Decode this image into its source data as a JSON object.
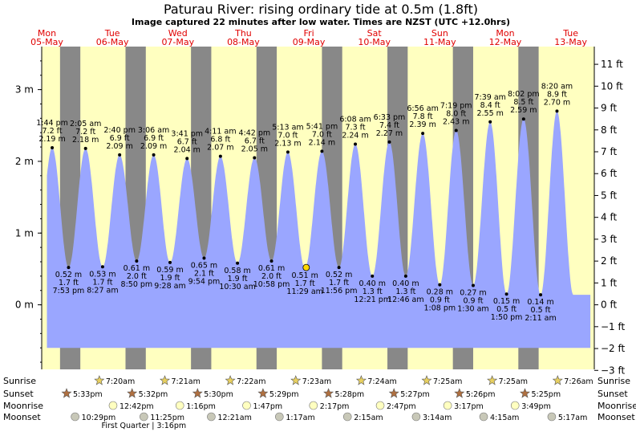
{
  "page": {
    "title": "Paturau River: rising  ordinary tide at 0.5m (1.8ft)",
    "subtitle": "Image captured 22 minutes after low water. Times are NZST (UTC +12.0hrs)"
  },
  "colors": {
    "night": "#888888",
    "day": "#ffffc0",
    "tide": "#9aa6ff",
    "day_label": "#e00000"
  },
  "chart_data": {
    "type": "area",
    "title": "Paturau River: rising  ordinary tide at 0.5m (1.8ft)",
    "days": [
      {
        "name": "Mon",
        "date": "05-May"
      },
      {
        "name": "Tue",
        "date": "06-May"
      },
      {
        "name": "Wed",
        "date": "07-May"
      },
      {
        "name": "Thu",
        "date": "08-May"
      },
      {
        "name": "Fri",
        "date": "09-May"
      },
      {
        "name": "Sat",
        "date": "10-May"
      },
      {
        "name": "Sun",
        "date": "11-May"
      },
      {
        "name": "Mon",
        "date": "12-May"
      },
      {
        "name": "Tue",
        "date": "13-May"
      }
    ],
    "x_range_days": [
      -0.08,
      8.36
    ],
    "night_periods": [
      [
        0.2,
        0.31
      ],
      [
        1.2,
        1.31
      ],
      [
        2.2,
        2.31
      ],
      [
        3.2,
        3.31
      ],
      [
        4.2,
        4.31
      ],
      [
        5.2,
        5.31
      ],
      [
        6.2,
        6.31
      ],
      [
        7.2,
        7.31
      ]
    ],
    "data_range_days": [
      0.0,
      8.3
    ],
    "y_left": {
      "unit": "m",
      "range": [
        -0.9,
        3.6
      ],
      "ticks": [
        0,
        1,
        2,
        3
      ],
      "labels": [
        "0 m",
        "1 m",
        "2 m",
        "3 m"
      ]
    },
    "y_right": {
      "unit": "ft",
      "ticks": [
        -3,
        -2,
        -1,
        0,
        1,
        2,
        3,
        4,
        5,
        6,
        7,
        8,
        9,
        10,
        11
      ],
      "labels": [
        "−3 ft",
        "−2 ft",
        "−1 ft",
        "0 ft",
        "1 ft",
        "2 ft",
        "3 ft",
        "4 ft",
        "5 ft",
        "6 ft",
        "7 ft",
        "8 ft",
        "9 ft",
        "10 ft",
        "11 ft"
      ]
    },
    "tides": [
      {
        "type": "high",
        "day": 0.08,
        "m": 2.19,
        "time": "1:44 pm",
        "ft": "7.2 ft",
        "m_label": "2.19 m"
      },
      {
        "type": "low",
        "day": 0.33,
        "m": 0.52,
        "time": "7:53 pm",
        "ft": "1.7 ft",
        "m_label": "0.52 m"
      },
      {
        "type": "high",
        "day": 0.59,
        "m": 2.18,
        "time": "2:05 am",
        "ft": "7.2 ft",
        "m_label": "2.18 m"
      },
      {
        "type": "low",
        "day": 0.85,
        "m": 0.53,
        "time": "8:27 am",
        "ft": "1.7 ft",
        "m_label": "0.53 m"
      },
      {
        "type": "high",
        "day": 1.11,
        "m": 2.09,
        "time": "2:40 pm",
        "ft": "6.9 ft",
        "m_label": "2.09 m"
      },
      {
        "type": "low",
        "day": 1.37,
        "m": 0.61,
        "time": "8:50 pm",
        "ft": "2.0 ft",
        "m_label": "0.61 m"
      },
      {
        "type": "high",
        "day": 1.63,
        "m": 2.09,
        "time": "3:06 am",
        "ft": "6.9 ft",
        "m_label": "2.09 m"
      },
      {
        "type": "low",
        "day": 1.88,
        "m": 0.59,
        "time": "9:28 am",
        "ft": "1.9 ft",
        "m_label": "0.59 m"
      },
      {
        "type": "high",
        "day": 2.14,
        "m": 2.04,
        "time": "3:41 pm",
        "ft": "6.7 ft",
        "m_label": "2.04 m"
      },
      {
        "type": "low",
        "day": 2.4,
        "m": 0.65,
        "time": "9:54 pm",
        "ft": "2.1 ft",
        "m_label": "0.65 m"
      },
      {
        "type": "high",
        "day": 2.65,
        "m": 2.07,
        "time": "4:11 am",
        "ft": "6.8 ft",
        "m_label": "2.07 m"
      },
      {
        "type": "low",
        "day": 2.91,
        "m": 0.58,
        "time": "10:30 am",
        "ft": "1.9 ft",
        "m_label": "0.58 m"
      },
      {
        "type": "high",
        "day": 3.17,
        "m": 2.05,
        "time": "4:42 pm",
        "ft": "6.7 ft",
        "m_label": "2.05 m"
      },
      {
        "type": "low",
        "day": 3.43,
        "m": 0.61,
        "time": "10:58 pm",
        "ft": "2.0 ft",
        "m_label": "0.61 m"
      },
      {
        "type": "high",
        "day": 3.68,
        "m": 2.13,
        "time": "5:13 am",
        "ft": "7.0 ft",
        "m_label": "2.13 m"
      },
      {
        "type": "low",
        "day": 3.94,
        "m": 0.51,
        "time": "11:29 am",
        "ft": "1.7 ft",
        "m_label": "0.51 m"
      },
      {
        "type": "high",
        "day": 4.2,
        "m": 2.14,
        "time": "5:41 pm",
        "ft": "7.0 ft",
        "m_label": "2.14 m"
      },
      {
        "type": "low",
        "day": 4.46,
        "m": 0.52,
        "time": "11:56 pm",
        "ft": "1.7 ft",
        "m_label": "0.52 m"
      },
      {
        "type": "high",
        "day": 4.71,
        "m": 2.24,
        "time": "6:08 am",
        "ft": "7.3 ft",
        "m_label": "2.24 m"
      },
      {
        "type": "low",
        "day": 4.97,
        "m": 0.4,
        "time": "12:21 pm",
        "ft": "1.3 ft",
        "m_label": "0.40 m"
      },
      {
        "type": "high",
        "day": 5.23,
        "m": 2.27,
        "time": "6:33 pm",
        "ft": "7.4 ft",
        "m_label": "2.27 m"
      },
      {
        "type": "low",
        "day": 5.48,
        "m": 0.4,
        "time": "12:46 am",
        "ft": "1.3 ft",
        "m_label": "0.40 m"
      },
      {
        "type": "high",
        "day": 5.74,
        "m": 2.39,
        "time": "6:56 am",
        "ft": "7.8 ft",
        "m_label": "2.39 m"
      },
      {
        "type": "low",
        "day": 6.0,
        "m": 0.28,
        "time": "1:08 pm",
        "ft": "0.9 ft",
        "m_label": "0.28 m"
      },
      {
        "type": "high",
        "day": 6.25,
        "m": 2.43,
        "time": "7:19 pm",
        "ft": "8.0 ft",
        "m_label": "2.43 m"
      },
      {
        "type": "low",
        "day": 6.51,
        "m": 0.27,
        "time": "1:30 am",
        "ft": "0.9 ft",
        "m_label": "0.27 m"
      },
      {
        "type": "high",
        "day": 6.77,
        "m": 2.55,
        "time": "7:39 am",
        "ft": "8.4 ft",
        "m_label": "2.55 m"
      },
      {
        "type": "low",
        "day": 7.02,
        "m": 0.15,
        "time": "1:50 pm",
        "ft": "0.5 ft",
        "m_label": "0.15 m"
      },
      {
        "type": "high",
        "day": 7.28,
        "m": 2.59,
        "time": "8:02 pm",
        "ft": "8.5 ft",
        "m_label": "2.59 m"
      },
      {
        "type": "low",
        "day": 7.54,
        "m": 0.14,
        "time": "2:11 am",
        "ft": "0.5 ft",
        "m_label": "0.14 m"
      },
      {
        "type": "high",
        "day": 7.79,
        "m": 2.7,
        "time": "8:20 am",
        "ft": "8.9 ft",
        "m_label": "2.70 m"
      }
    ],
    "current": {
      "day": 3.96,
      "m": 0.52
    },
    "rows": [
      {
        "label": "Sunrise",
        "icon": "sun-icon",
        "color": "#e8d060",
        "events": [
          {
            "day": 0.8,
            "text": "7:20am"
          },
          {
            "day": 1.8,
            "text": "7:21am"
          },
          {
            "day": 2.8,
            "text": "7:22am"
          },
          {
            "day": 3.8,
            "text": "7:23am"
          },
          {
            "day": 4.8,
            "text": "7:24am"
          },
          {
            "day": 5.8,
            "text": "7:25am"
          },
          {
            "day": 6.8,
            "text": "7:25am"
          },
          {
            "day": 7.8,
            "text": "7:26am"
          }
        ]
      },
      {
        "label": "Sunset",
        "icon": "sunset-icon",
        "color": "#b07040",
        "events": [
          {
            "day": 0.3,
            "text": "5:33pm"
          },
          {
            "day": 1.3,
            "text": "5:32pm"
          },
          {
            "day": 2.3,
            "text": "5:30pm"
          },
          {
            "day": 3.3,
            "text": "5:29pm"
          },
          {
            "day": 4.3,
            "text": "5:28pm"
          },
          {
            "day": 5.3,
            "text": "5:27pm"
          },
          {
            "day": 6.3,
            "text": "5:26pm"
          },
          {
            "day": 7.3,
            "text": "5:25pm"
          }
        ]
      },
      {
        "label": "Moonrise",
        "icon": "moon-icon",
        "color": "#ffffc0",
        "events": [
          {
            "day": 1.01,
            "text": "12:42pm"
          },
          {
            "day": 2.03,
            "text": "1:16pm"
          },
          {
            "day": 3.05,
            "text": "1:47pm"
          },
          {
            "day": 4.07,
            "text": "2:17pm"
          },
          {
            "day": 5.09,
            "text": "2:47pm"
          },
          {
            "day": 6.12,
            "text": "3:17pm"
          },
          {
            "day": 7.15,
            "text": "3:49pm"
          }
        ]
      },
      {
        "label": "Moonset",
        "icon": "moon-icon",
        "color": "#c8c8b8",
        "events": [
          {
            "day": 0.43,
            "text": "10:29pm"
          },
          {
            "day": 1.48,
            "text": "11:25pm"
          },
          {
            "day": 2.51,
            "text": "12:21am"
          },
          {
            "day": 3.55,
            "text": "1:17am"
          },
          {
            "day": 4.59,
            "text": "2:15am"
          },
          {
            "day": 5.64,
            "text": "3:14am"
          },
          {
            "day": 6.67,
            "text": "4:15am"
          },
          {
            "day": 7.71,
            "text": "5:17am"
          }
        ]
      }
    ],
    "moon_phase": {
      "day": 1.48,
      "text": "First Quarter | 3:16pm"
    }
  }
}
